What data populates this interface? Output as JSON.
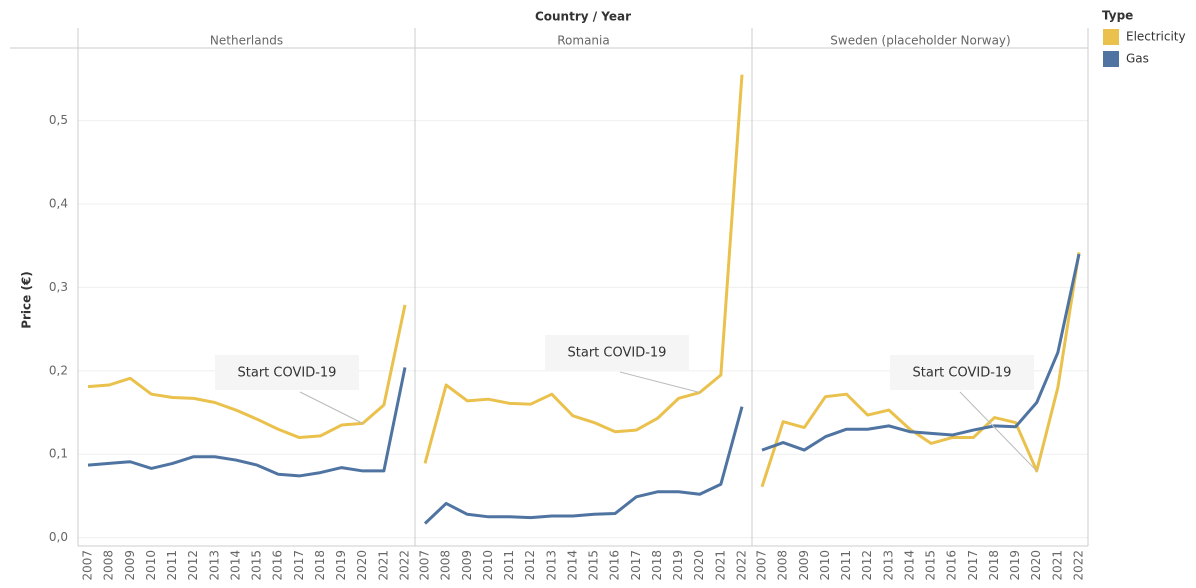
{
  "chart_data": {
    "type": "line",
    "column_header": "Country / Year",
    "ylabel": "Price (€)",
    "legend_title": "Type",
    "categories": [
      "2007",
      "2008",
      "2009",
      "2010",
      "2011",
      "2012",
      "2013",
      "2014",
      "2015",
      "2016",
      "2017",
      "2018",
      "2019",
      "2020",
      "2021",
      "2022"
    ],
    "ylim": [
      -0.01,
      0.575
    ],
    "yticks": [
      {
        "value": 0,
        "label": "0,0"
      },
      {
        "value": 0.1,
        "label": "0,1"
      },
      {
        "value": 0.2,
        "label": "0,2"
      },
      {
        "value": 0.3,
        "label": "0,3"
      },
      {
        "value": 0.4,
        "label": "0,4"
      },
      {
        "value": 0.5,
        "label": "0,5"
      }
    ],
    "grid": true,
    "series": [
      {
        "name": "Electricity",
        "color": "#eac14c"
      },
      {
        "name": "Gas",
        "color": "#4f74a1"
      }
    ],
    "panels": [
      {
        "name": "Netherlands",
        "annotation": "Start COVID-19",
        "values": [
          [
            0.181,
            0.183,
            0.191,
            0.172,
            0.168,
            0.167,
            0.162,
            0.153,
            0.142,
            0.13,
            0.12,
            0.122,
            0.135,
            0.137,
            0.159,
            0.279
          ],
          [
            0.087,
            0.089,
            0.091,
            0.083,
            0.089,
            0.097,
            0.097,
            0.093,
            0.087,
            0.076,
            0.074,
            0.078,
            0.084,
            0.08,
            0.08,
            0.204
          ]
        ]
      },
      {
        "name": "Romania",
        "annotation": "Start COVID-19",
        "values": [
          [
            0.089,
            0.183,
            0.164,
            0.166,
            0.161,
            0.16,
            0.172,
            0.146,
            0.138,
            0.127,
            0.129,
            0.143,
            0.167,
            0.174,
            0.195,
            0.555
          ],
          [
            0.017,
            0.041,
            0.028,
            0.025,
            0.025,
            0.024,
            0.026,
            0.026,
            0.028,
            0.029,
            0.049,
            0.055,
            0.055,
            0.052,
            0.064,
            0.157
          ]
        ]
      },
      {
        "name": "Sweden (placeholder Norway)",
        "annotation": "Start COVID-19",
        "values": [
          [
            0.061,
            0.139,
            0.132,
            0.169,
            0.172,
            0.147,
            0.153,
            0.13,
            0.113,
            0.12,
            0.12,
            0.144,
            0.138,
            0.08,
            0.18,
            0.342
          ],
          [
            0.105,
            0.114,
            0.105,
            0.121,
            0.13,
            0.13,
            0.134,
            0.127,
            0.125,
            0.123,
            0.129,
            0.134,
            0.133,
            0.162,
            0.222,
            0.34
          ]
        ]
      }
    ]
  }
}
